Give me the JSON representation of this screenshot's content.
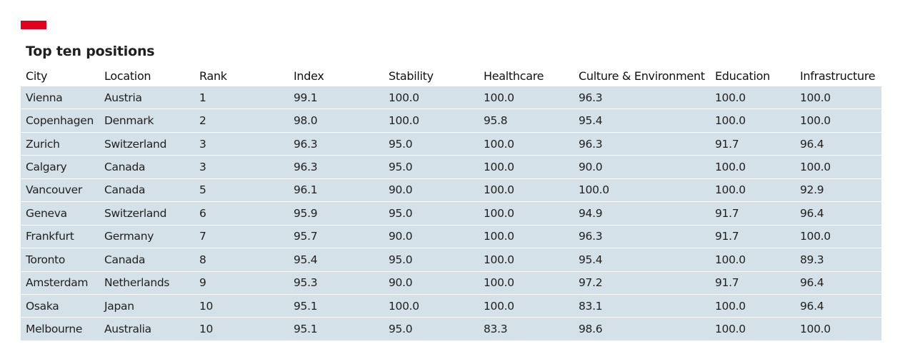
{
  "colors": {
    "accent": "#e3001b",
    "row_fill": "#d4e1e9"
  },
  "chart_data": {
    "type": "table",
    "title": "Top ten positions",
    "columns": [
      "City",
      "Location",
      "Rank",
      "Index",
      "Stability",
      "Healthcare",
      "Culture & Environment",
      "Education",
      "Infrastructure"
    ],
    "rows": [
      [
        "Vienna",
        "Austria",
        "1",
        "99.1",
        "100.0",
        "100.0",
        "96.3",
        "100.0",
        "100.0"
      ],
      [
        "Copenhagen",
        "Denmark",
        "2",
        "98.0",
        "100.0",
        "95.8",
        "95.4",
        "100.0",
        "100.0"
      ],
      [
        "Zurich",
        "Switzerland",
        "3",
        "96.3",
        "95.0",
        "100.0",
        "96.3",
        "91.7",
        "96.4"
      ],
      [
        "Calgary",
        "Canada",
        "3",
        "96.3",
        "95.0",
        "100.0",
        "90.0",
        "100.0",
        "100.0"
      ],
      [
        "Vancouver",
        "Canada",
        "5",
        "96.1",
        "90.0",
        "100.0",
        "100.0",
        "100.0",
        "92.9"
      ],
      [
        "Geneva",
        "Switzerland",
        "6",
        "95.9",
        "95.0",
        "100.0",
        "94.9",
        "91.7",
        "96.4"
      ],
      [
        "Frankfurt",
        "Germany",
        "7",
        "95.7",
        "90.0",
        "100.0",
        "96.3",
        "91.7",
        "100.0"
      ],
      [
        "Toronto",
        "Canada",
        "8",
        "95.4",
        "95.0",
        "100.0",
        "95.4",
        "100.0",
        "89.3"
      ],
      [
        "Amsterdam",
        "Netherlands",
        "9",
        "95.3",
        "90.0",
        "100.0",
        "97.2",
        "91.7",
        "96.4"
      ],
      [
        "Osaka",
        "Japan",
        "10",
        "95.1",
        "100.0",
        "100.0",
        "83.1",
        "100.0",
        "96.4"
      ],
      [
        "Melbourne",
        "Australia",
        "10",
        "95.1",
        "95.0",
        "83.3",
        "98.6",
        "100.0",
        "100.0"
      ]
    ]
  }
}
